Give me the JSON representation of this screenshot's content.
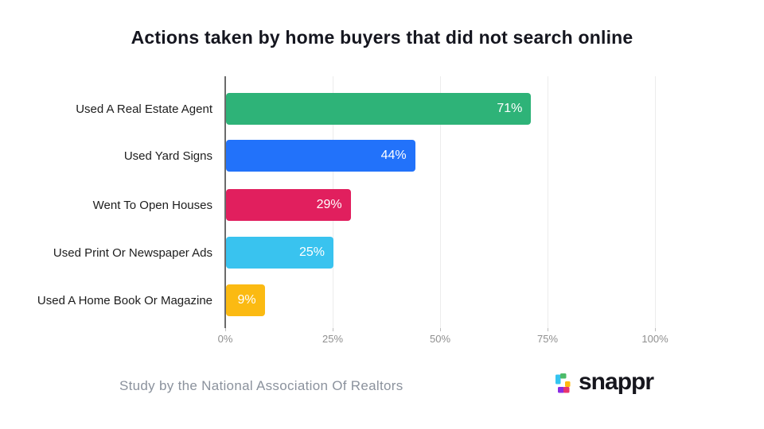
{
  "title": "Actions taken by home buyers that did not search online",
  "chart_data": {
    "type": "bar",
    "orientation": "horizontal",
    "title": "Actions taken by home buyers that did not search online",
    "categories": [
      "Used A Real Estate Agent",
      "Used Yard Signs",
      "Went To Open Houses",
      "Used Print Or Newspaper Ads",
      "Used A Home Book Or Magazine"
    ],
    "values": [
      71,
      44,
      29,
      25,
      9
    ],
    "value_labels": [
      "71%",
      "44%",
      "29%",
      "25%",
      "9%"
    ],
    "bar_colors": [
      "#2eb378",
      "#2272fa",
      "#e11f5e",
      "#39c3ef",
      "#fbba12"
    ],
    "xlabel": "",
    "ylabel": "",
    "xlim": [
      0,
      100
    ],
    "x_tick_values": [
      0,
      25,
      50,
      75,
      100
    ],
    "x_tick_labels": [
      "0%",
      "25%",
      "50%",
      "75%",
      "100%"
    ],
    "grid": "vertical light gridlines at ticks, no x baseline",
    "legend": "none",
    "value_label_position": "inside-end",
    "value_label_color": "#ffffff"
  },
  "footer": {
    "source": "Study by the National Association Of Realtors",
    "brand": "snappr"
  },
  "colors": {
    "background": "#ffffff",
    "title_text": "#15161f",
    "axis_line": "#6b6b6b",
    "gridline": "#ececec",
    "tick_text": "#8f8f8f",
    "category_text": "#1d1d1d",
    "source_text": "#8b929d",
    "brand_text": "#16161d",
    "logo_cyan": "#35c4f0",
    "logo_green": "#4cbb69",
    "logo_yellow": "#ffb90f",
    "logo_purple": "#8a2be2",
    "logo_pink": "#e8336e"
  }
}
